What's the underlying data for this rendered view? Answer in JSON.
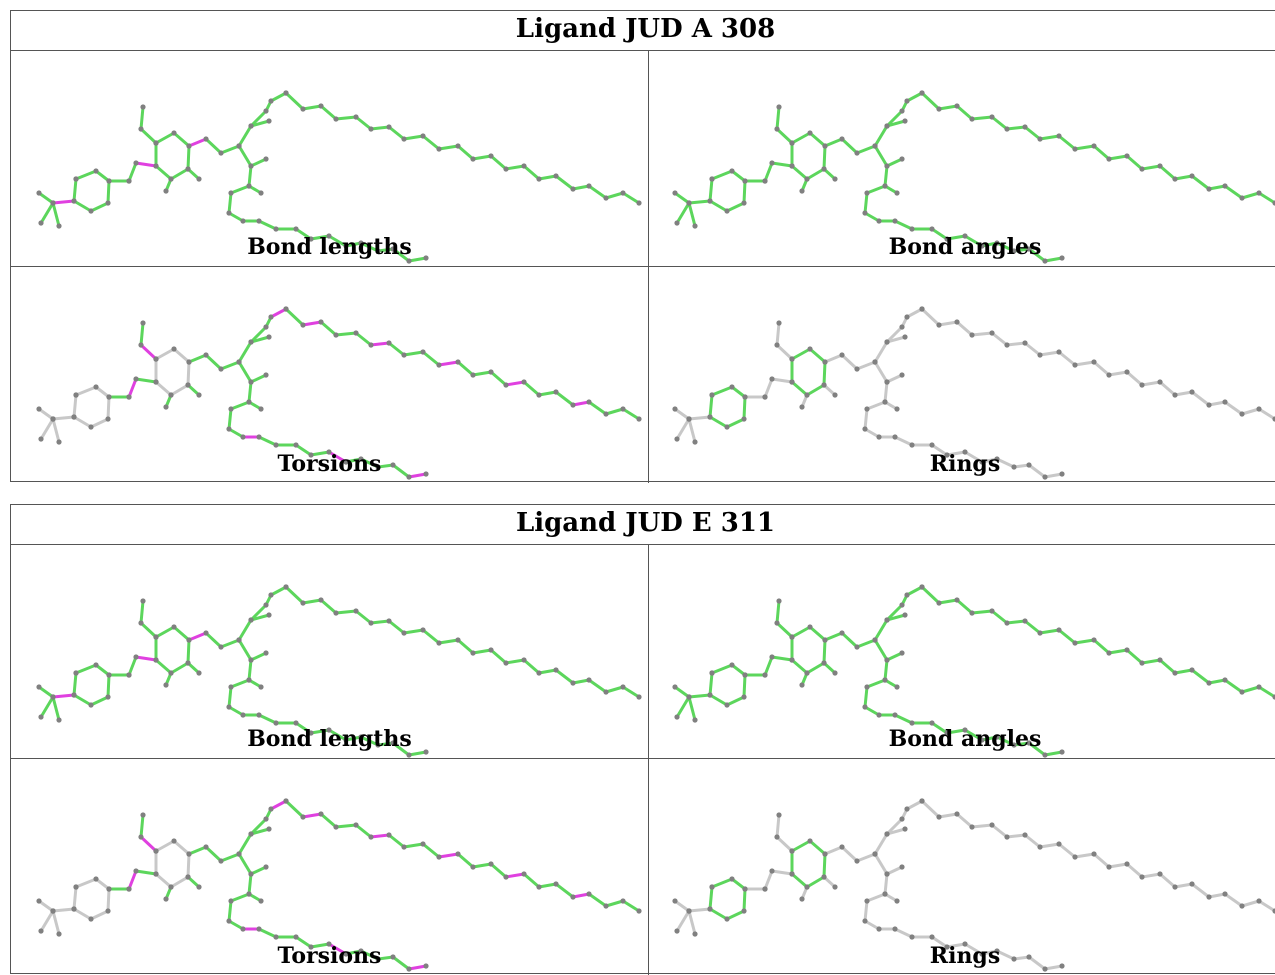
{
  "ligands": [
    {
      "title": "Ligand JUD A 308",
      "panels": [
        {
          "caption": "Bond lengths",
          "mode": "lengths"
        },
        {
          "caption": "Bond angles",
          "mode": "angles"
        },
        {
          "caption": "Torsions",
          "mode": "torsions"
        },
        {
          "caption": "Rings",
          "mode": "rings"
        }
      ]
    },
    {
      "title": "Ligand JUD E 311",
      "panels": [
        {
          "caption": "Bond lengths",
          "mode": "lengths"
        },
        {
          "caption": "Bond angles",
          "mode": "angles"
        },
        {
          "caption": "Torsions",
          "mode": "torsions"
        },
        {
          "caption": "Rings",
          "mode": "rings"
        }
      ]
    }
  ],
  "colors": {
    "ok": "#5cd65c",
    "outlier": "#e040e0",
    "neutral": "#c8c8c8",
    "atom": "#808080",
    "border": "#555555"
  }
}
